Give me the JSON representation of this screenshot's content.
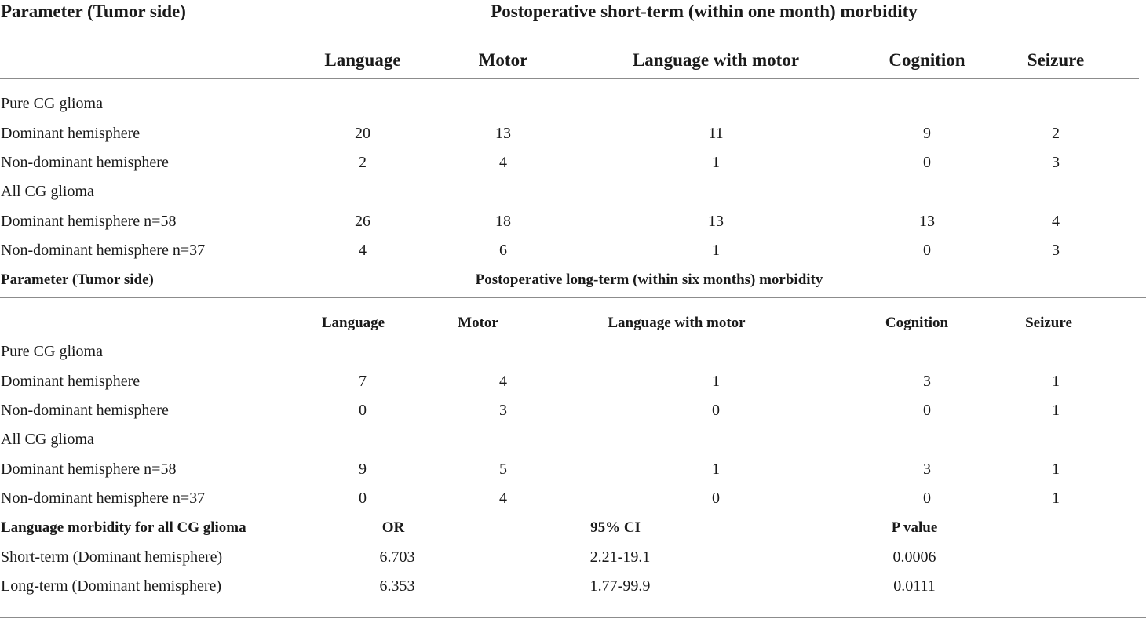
{
  "section1": {
    "param_header": "Parameter (Tumor side)",
    "title": "Postoperative short-term (within one month) morbidity",
    "columns": [
      "Language",
      "Motor",
      "Language with motor",
      "Cognition",
      "Seizure"
    ],
    "rows": [
      {
        "label": "Pure CG glioma",
        "values": []
      },
      {
        "label": "Dominant hemisphere",
        "values": [
          "20",
          "13",
          "11",
          "9",
          "2"
        ]
      },
      {
        "label": "Non-dominant hemisphere",
        "values": [
          "2",
          "4",
          "1",
          "0",
          "3"
        ]
      },
      {
        "label": "All CG glioma",
        "values": []
      },
      {
        "label": "Dominant hemisphere n=58",
        "values": [
          "26",
          "18",
          "13",
          "13",
          "4"
        ]
      },
      {
        "label": "Non-dominant hemisphere n=37",
        "values": [
          "4",
          "6",
          "1",
          "0",
          "3"
        ]
      }
    ]
  },
  "section2": {
    "param_header": "Parameter (Tumor side)",
    "title": "Postoperative long-term (within six months) morbidity",
    "columns": [
      "Language",
      "Motor",
      "Language with motor",
      "Cognition",
      "Seizure"
    ],
    "rows": [
      {
        "label": "Pure CG glioma",
        "values": []
      },
      {
        "label": "Dominant hemisphere",
        "values": [
          "7",
          "4",
          "1",
          "3",
          "1"
        ]
      },
      {
        "label": "Non-dominant hemisphere",
        "values": [
          "0",
          "3",
          "0",
          "0",
          "1"
        ]
      },
      {
        "label": "All CG glioma",
        "values": []
      },
      {
        "label": "Dominant hemisphere n=58",
        "values": [
          "9",
          "5",
          "1",
          "3",
          "1"
        ]
      },
      {
        "label": "Non-dominant hemisphere n=37",
        "values": [
          "0",
          "4",
          "0",
          "0",
          "1"
        ]
      }
    ]
  },
  "section3": {
    "header": "Language morbidity for all CG glioma",
    "columns": [
      "OR",
      "95% CI",
      "P value"
    ],
    "rows": [
      {
        "label": "Short-term (Dominant hemisphere)",
        "values": [
          "6.703",
          "2.21-19.1",
          "0.0006"
        ]
      },
      {
        "label": "Long-term (Dominant hemisphere)",
        "values": [
          "6.353",
          "1.77-99.9",
          "0.0111"
        ]
      }
    ]
  }
}
